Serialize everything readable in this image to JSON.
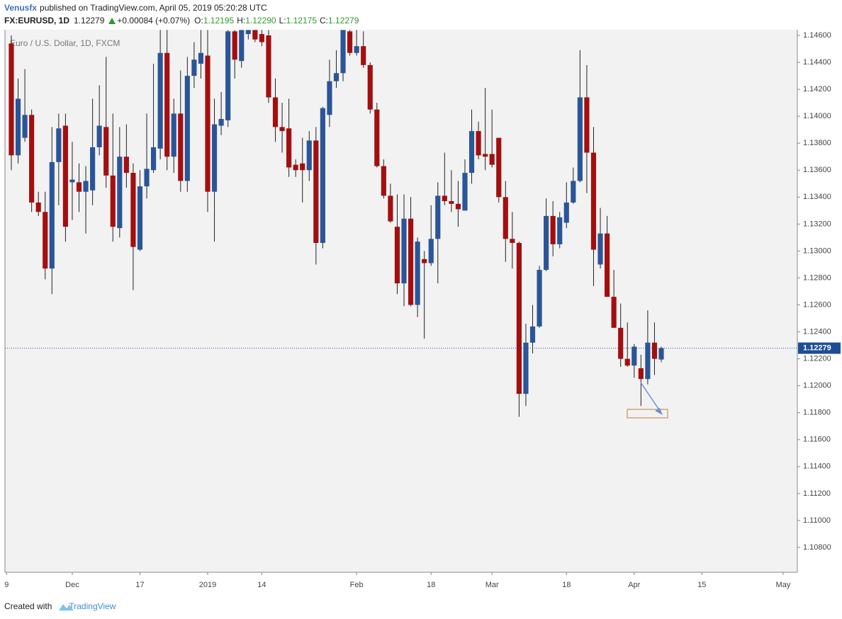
{
  "header": {
    "publisher": "Venusfx",
    "published": "published on TradingView.com, April 05, 2019 05:20:28 UTC",
    "symbol": "FX:EURUSD, 1D",
    "price": "1.12279",
    "change": "+0.00084 (+0.07%)",
    "o_label": "O:",
    "o": "1.12195",
    "h_label": "H:",
    "h": "1.12290",
    "l_label": "L:",
    "l": "1.12175",
    "c_label": "C:",
    "c": "1.12279"
  },
  "footer": {
    "created": "Created with",
    "brand": "TradingView"
  },
  "chart_data": {
    "type": "candlestick",
    "title": "Euro / U.S. Dollar, 1D, FXCM",
    "up_color": "#2a5598",
    "down_color": "#a30f0f",
    "grid": false,
    "xlim": [
      -0.94,
      116.1
    ],
    "xticks": [
      {
        "value": -0.7,
        "label": "9"
      },
      {
        "value": 9,
        "label": "Dec"
      },
      {
        "value": 19,
        "label": "17"
      },
      {
        "value": 29,
        "label": "2019"
      },
      {
        "value": 37,
        "label": "14"
      },
      {
        "value": 51,
        "label": "Feb"
      },
      {
        "value": 62,
        "label": "18"
      },
      {
        "value": 71,
        "label": "Mar"
      },
      {
        "value": 82,
        "label": "18"
      },
      {
        "value": 92,
        "label": "Apr"
      },
      {
        "value": 102,
        "label": "15"
      },
      {
        "value": 114,
        "label": "May"
      }
    ],
    "ylim": [
      1.10616,
      1.14642
    ],
    "yticks": [
      {
        "value": 1.146,
        "label": "1.14600"
      },
      {
        "value": 1.144,
        "label": "1.14400"
      },
      {
        "value": 1.142,
        "label": "1.14200"
      },
      {
        "value": 1.14,
        "label": "1.14000"
      },
      {
        "value": 1.138,
        "label": "1.13800"
      },
      {
        "value": 1.136,
        "label": "1.13600"
      },
      {
        "value": 1.134,
        "label": "1.13400"
      },
      {
        "value": 1.132,
        "label": "1.13200"
      },
      {
        "value": 1.13,
        "label": "1.13000"
      },
      {
        "value": 1.128,
        "label": "1.12800"
      },
      {
        "value": 1.126,
        "label": "1.12600"
      },
      {
        "value": 1.124,
        "label": "1.12400"
      },
      {
        "value": 1.122,
        "label": "1.12200"
      },
      {
        "value": 1.12,
        "label": "1.12000"
      },
      {
        "value": 1.118,
        "label": "1.11800"
      },
      {
        "value": 1.116,
        "label": "1.11600"
      },
      {
        "value": 1.114,
        "label": "1.11400"
      },
      {
        "value": 1.112,
        "label": "1.11200"
      },
      {
        "value": 1.11,
        "label": "1.11000"
      },
      {
        "value": 1.108,
        "label": "1.10800"
      }
    ],
    "last_price": {
      "value": 1.12279,
      "label": "1.12279"
    },
    "open": [
      1.1454,
      1.1371,
      1.1384,
      1.1401,
      1.1336,
      1.1329,
      1.1287,
      1.1366,
      1.1393,
      1.1351,
      1.1351,
      1.1344,
      1.1345,
      1.1377,
      1.1392,
      1.1356,
      1.1317,
      1.137,
      1.1358,
      1.1301,
      1.1348,
      1.136,
      1.1376,
      1.1447,
      1.137,
      1.1402,
      1.1352,
      1.143,
      1.1439,
      1.1445,
      1.1344,
      1.1393,
      1.1397,
      1.1463,
      1.1441,
      1.1461,
      1.1464,
      1.1461,
      1.146,
      1.1414,
      1.1392,
      1.1391,
      1.1364,
      1.1365,
      1.136,
      1.1382,
      1.1306,
      1.1401,
      1.1426,
      1.1432,
      1.1463,
      1.1447,
      1.1452,
      1.1438,
      1.1405,
      1.1363,
      1.1341,
      1.1318,
      1.1276,
      1.1324,
      1.126,
      1.1294,
      1.1291,
      1.1309,
      1.1341,
      1.1337,
      1.1335,
      1.133,
      1.1358,
      1.1389,
      1.1372,
      1.1372,
      1.1384,
      1.134,
      1.1309,
      1.1306,
      1.1194,
      1.1232,
      1.1244,
      1.1286,
      1.1326,
      1.1305,
      1.1321,
      1.1336,
      1.1352,
      1.1414,
      1.1373,
      1.129,
      1.1313,
      1.1266,
      1.1243,
      1.122,
      1.1215,
      1.1213,
      1.1205,
      1.1232,
      1.12195
    ],
    "high": [
      1.146,
      1.1428,
      1.1435,
      1.1405,
      1.1344,
      1.1344,
      1.1392,
      1.1402,
      1.1402,
      1.1381,
      1.1365,
      1.1363,
      1.1413,
      1.1423,
      1.1444,
      1.1402,
      1.1392,
      1.1394,
      1.1365,
      1.136,
      1.1402,
      1.1439,
      1.1464,
      1.1464,
      1.1413,
      1.1434,
      1.1444,
      1.1455,
      1.1464,
      1.1464,
      1.1413,
      1.1418,
      1.1464,
      1.1464,
      1.1464,
      1.1464,
      1.1464,
      1.1464,
      1.1464,
      1.1428,
      1.141,
      1.1413,
      1.1368,
      1.1384,
      1.1389,
      1.1392,
      1.1407,
      1.1442,
      1.1449,
      1.1464,
      1.1464,
      1.1464,
      1.1463,
      1.144,
      1.141,
      1.1368,
      1.135,
      1.1342,
      1.1342,
      1.134,
      1.131,
      1.13,
      1.1334,
      1.1351,
      1.1373,
      1.136,
      1.1352,
      1.1368,
      1.1405,
      1.1396,
      1.1421,
      1.1405,
      1.1384,
      1.1352,
      1.1329,
      1.1307,
      1.1246,
      1.126,
      1.1289,
      1.1339,
      1.1337,
      1.1329,
      1.1351,
      1.1362,
      1.1449,
      1.1438,
      1.1392,
      1.1332,
      1.1326,
      1.1286,
      1.1261,
      1.1247,
      1.1231,
      1.1223,
      1.1256,
      1.1247,
      1.1229
    ],
    "low": [
      1.136,
      1.1365,
      1.1381,
      1.1329,
      1.1326,
      1.1279,
      1.1268,
      1.1334,
      1.1307,
      1.1323,
      1.1329,
      1.1313,
      1.1334,
      1.1371,
      1.1347,
      1.1307,
      1.131,
      1.1347,
      1.1271,
      1.13,
      1.1339,
      1.1358,
      1.1368,
      1.136,
      1.1358,
      1.1344,
      1.1344,
      1.1421,
      1.1428,
      1.1329,
      1.1307,
      1.1386,
      1.1392,
      1.1428,
      1.1436,
      1.1457,
      1.1455,
      1.1452,
      1.141,
      1.1381,
      1.1373,
      1.1355,
      1.1355,
      1.1336,
      1.1352,
      1.129,
      1.1302,
      1.1392,
      1.1421,
      1.1426,
      1.1445,
      1.1445,
      1.1436,
      1.1402,
      1.1362,
      1.1339,
      1.1321,
      1.1268,
      1.1259,
      1.1259,
      1.1251,
      1.1235,
      1.1289,
      1.1276,
      1.1334,
      1.1329,
      1.1318,
      1.133,
      1.135,
      1.1368,
      1.136,
      1.1362,
      1.1336,
      1.1292,
      1.1287,
      1.1177,
      1.1185,
      1.1224,
      1.1243,
      1.1285,
      1.1296,
      1.1302,
      1.1317,
      1.1335,
      1.1351,
      1.1343,
      1.1274,
      1.1287,
      1.1266,
      1.1243,
      1.1214,
      1.1214,
      1.1206,
      1.1185,
      1.1201,
      1.1208,
      1.12175
    ],
    "close": [
      1.1371,
      1.1413,
      1.1401,
      1.1336,
      1.1329,
      1.1287,
      1.1366,
      1.1391,
      1.1318,
      1.1353,
      1.1344,
      1.1352,
      1.1377,
      1.1393,
      1.1356,
      1.1318,
      1.137,
      1.1358,
      1.1303,
      1.1348,
      1.1361,
      1.1377,
      1.1447,
      1.137,
      1.1402,
      1.1352,
      1.143,
      1.1442,
      1.1447,
      1.1344,
      1.1394,
      1.1398,
      1.1463,
      1.1442,
      1.1464,
      1.1464,
      1.1457,
      1.1455,
      1.1414,
      1.1392,
      1.1389,
      1.1362,
      1.136,
      1.136,
      1.1382,
      1.1306,
      1.1406,
      1.1426,
      1.1432,
      1.1464,
      1.1447,
      1.1452,
      1.1438,
      1.1405,
      1.1363,
      1.1341,
      1.1322,
      1.1276,
      1.1324,
      1.126,
      1.1307,
      1.1291,
      1.1309,
      1.1341,
      1.1337,
      1.1335,
      1.1331,
      1.1358,
      1.1389,
      1.1371,
      1.137,
      1.1364,
      1.134,
      1.1309,
      1.1306,
      1.1194,
      1.1232,
      1.1244,
      1.1286,
      1.1326,
      1.1305,
      1.1325,
      1.1336,
      1.1352,
      1.1414,
      1.1373,
      1.1301,
      1.1313,
      1.1266,
      1.1243,
      1.122,
      1.1215,
      1.1229,
      1.1205,
      1.1232,
      1.122,
      1.12279
    ]
  }
}
